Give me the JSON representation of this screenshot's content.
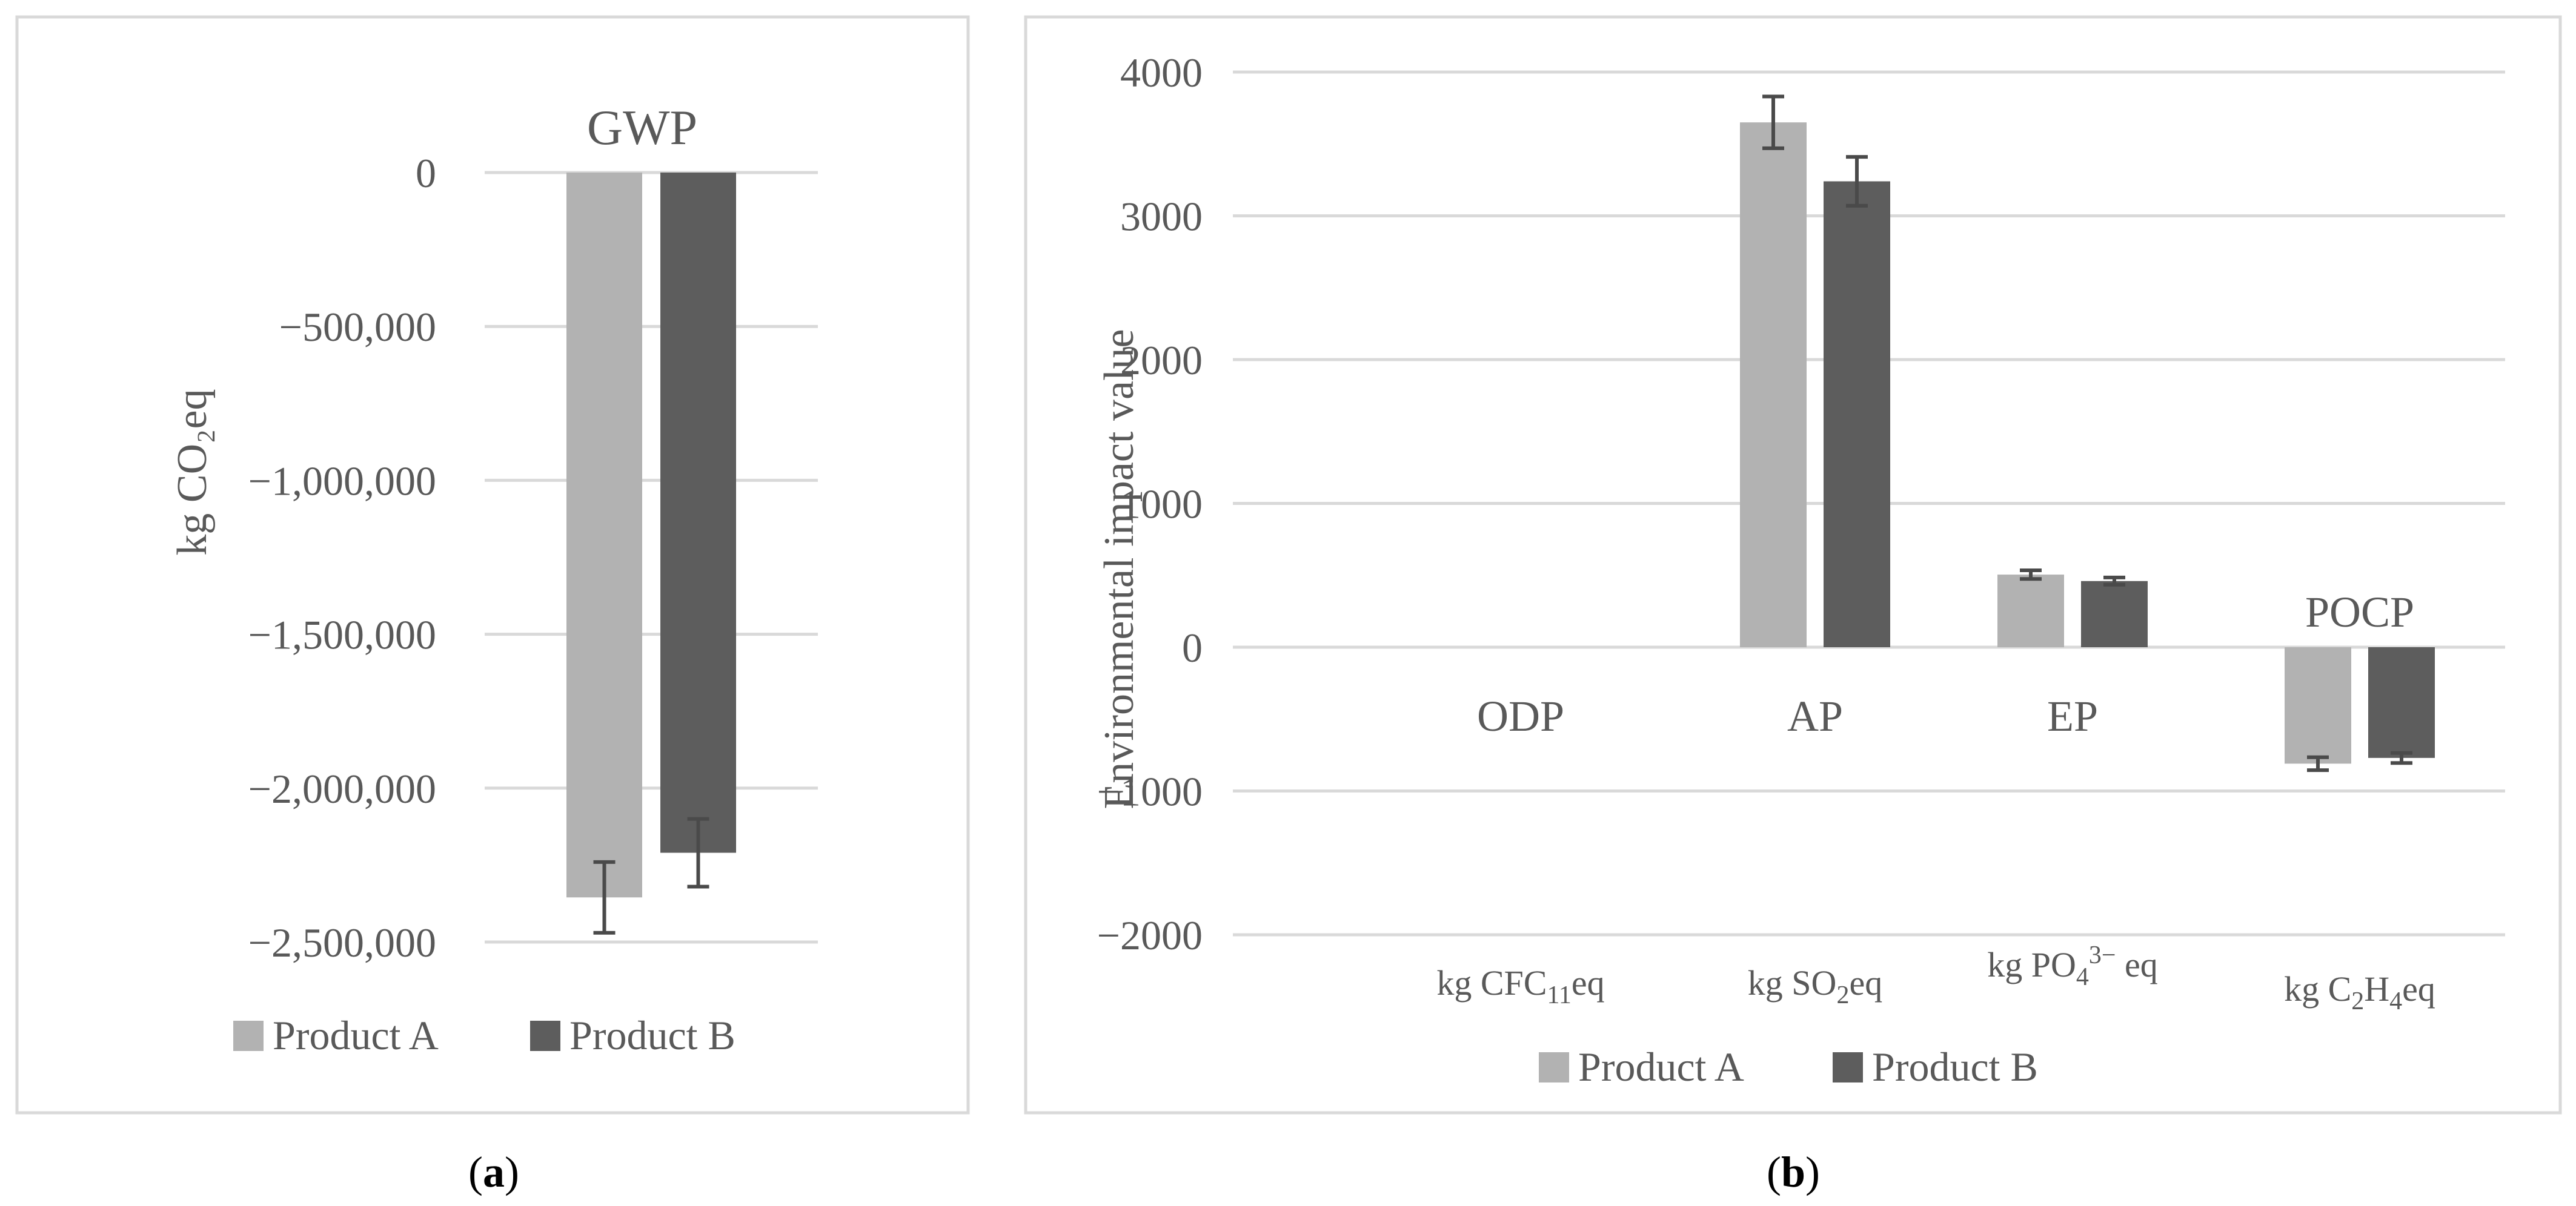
{
  "chart_data": [
    {
      "type": "bar",
      "panel_label": "a",
      "ylabel": "kg CO₂eq",
      "categories": [
        "GWP"
      ],
      "series": [
        {
          "name": "Product A",
          "values": [
            -2355000
          ],
          "error": [
            115000
          ]
        },
        {
          "name": "Product B",
          "values": [
            -2210000
          ],
          "error": [
            110000
          ]
        }
      ],
      "ylim": [
        -2500000,
        0
      ],
      "yticks": [
        0,
        -500000,
        -1000000,
        -1500000,
        -2000000,
        -2500000
      ],
      "ytick_labels": [
        "0",
        "−500,000",
        "−1,000,000",
        "−1,500,000",
        "−2,000,000",
        "−2,500,000"
      ],
      "grid": true,
      "legend": "bottom"
    },
    {
      "type": "bar",
      "panel_label": "b",
      "ylabel": "Environmental impact value",
      "categories": [
        "ODP",
        "AP",
        "EP",
        "POCP"
      ],
      "category_units": [
        {
          "pre": "kg CFC",
          "sub": "11",
          "post": "eq"
        },
        {
          "pre": "kg SO",
          "sub": "2",
          "post": "eq"
        },
        {
          "pre": "kg PO",
          "sub": "4",
          "sup": "3−",
          "post": " eq"
        },
        {
          "pre": "kg C",
          "sub": "2",
          "mid": "H",
          "sub2": "4",
          "post": "eq"
        }
      ],
      "series": [
        {
          "name": "Product A",
          "values": [
            0,
            3650,
            505,
            -810
          ],
          "error": [
            0,
            180,
            30,
            45
          ]
        },
        {
          "name": "Product B",
          "values": [
            0,
            3240,
            460,
            -770
          ],
          "error": [
            0,
            170,
            25,
            35
          ]
        }
      ],
      "ylim": [
        -2000,
        4000
      ],
      "yticks": [
        4000,
        3000,
        2000,
        1000,
        0,
        -1000,
        -2000
      ],
      "ytick_labels": [
        "4000",
        "3000",
        "2000",
        "1000",
        "0",
        "−1000",
        "−2000"
      ],
      "grid": true,
      "legend": "bottom"
    }
  ],
  "colors": {
    "product_a": "#b2b2b2",
    "product_b": "#5d5d5d",
    "grid": "#d9d9d9",
    "frame": "#d9d9d9",
    "text": "#595959",
    "errbar": "#4a4a4a"
  }
}
